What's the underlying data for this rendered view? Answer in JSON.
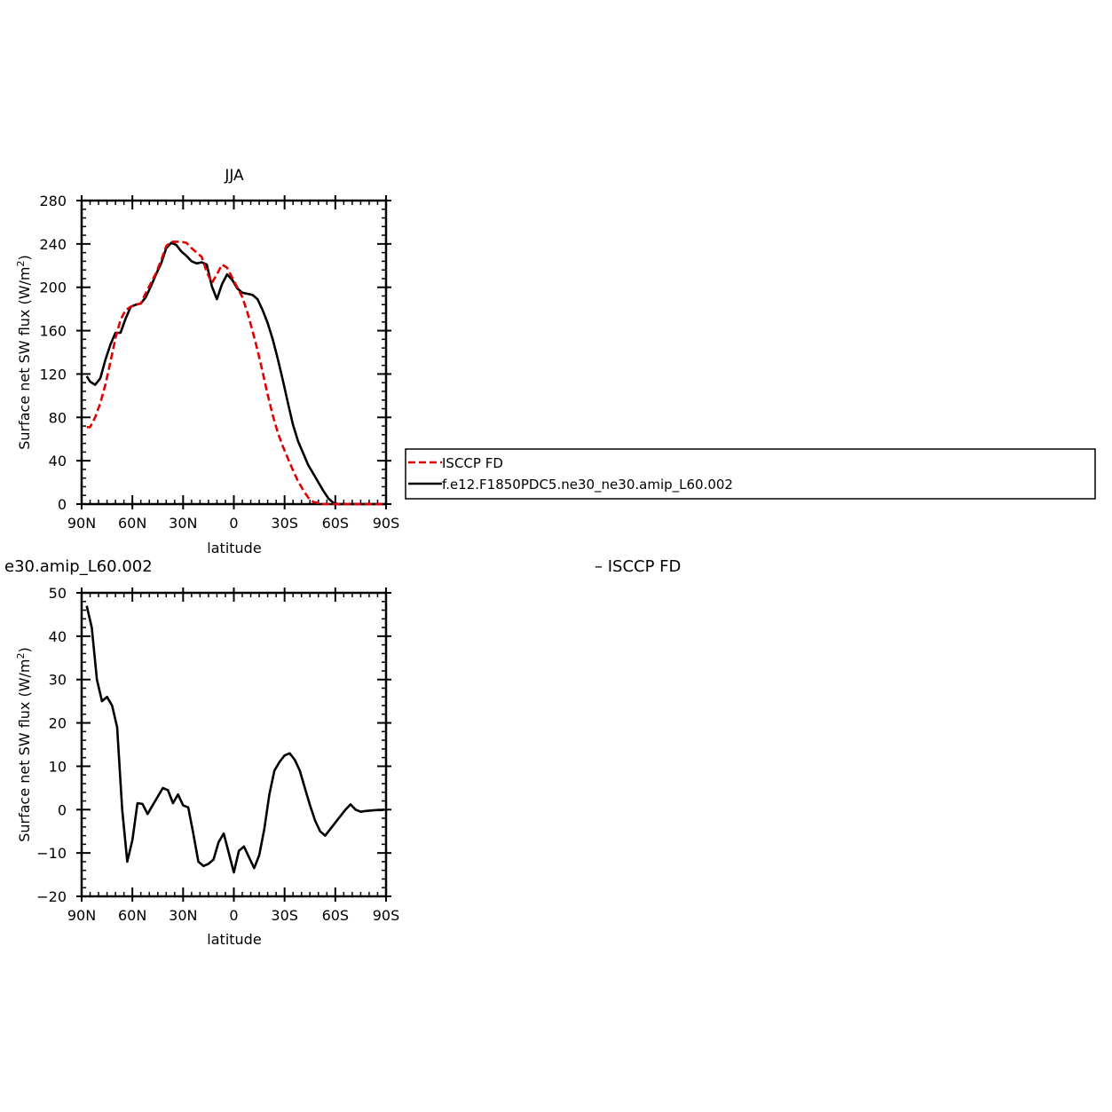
{
  "chart_data": [
    {
      "type": "line",
      "title": "JJA",
      "xlabel": "latitude",
      "ylabel": "Surface net SW flux (W/m",
      "ylabel_sup": "2",
      "ylabel_end": ")",
      "xlim": [
        90,
        -90
      ],
      "ylim": [
        0,
        280
      ],
      "xticks": [
        90,
        60,
        30,
        0,
        -30,
        -60,
        -90
      ],
      "xtick_labels": [
        "90N",
        "60N",
        "30N",
        "0",
        "30S",
        "60S",
        "90S"
      ],
      "yticks": [
        0,
        40,
        80,
        120,
        160,
        200,
        240,
        280
      ],
      "ytick_labels": [
        "0",
        "40",
        "80",
        "120",
        "160",
        "200",
        "240",
        "280"
      ],
      "legend_position": "right",
      "series": [
        {
          "name": "ISCCP FD",
          "color": "#e00000",
          "dash": "dashed",
          "x": [
            87,
            85,
            82,
            79,
            76,
            73,
            70,
            67,
            64,
            61,
            58,
            55,
            52,
            49,
            46,
            43,
            40,
            37,
            34,
            31,
            28,
            25,
            22,
            19,
            16,
            13,
            10,
            7,
            4,
            1,
            -2,
            -5,
            -8,
            -11,
            -14,
            -17,
            -20,
            -23,
            -26,
            -29,
            -32,
            -35,
            -38,
            -41,
            -44,
            -47,
            -50,
            -53,
            -56,
            -59,
            -62,
            -65,
            -68,
            -71,
            -74,
            -77,
            -80,
            -83,
            -86,
            -89
          ],
          "y": [
            71,
            71,
            80,
            93,
            110,
            131,
            153,
            170,
            179,
            182,
            184,
            185,
            195,
            204,
            213,
            225,
            238,
            242,
            242,
            242,
            241,
            236,
            232,
            228,
            214,
            204,
            212,
            221,
            218,
            209,
            200,
            191,
            177,
            160,
            142,
            122,
            101,
            82,
            66,
            53,
            42,
            31,
            21,
            13,
            6,
            2,
            1,
            0,
            0,
            0,
            0,
            0,
            0,
            0,
            0,
            0,
            0,
            0,
            0,
            0
          ]
        },
        {
          "name": "f.e12.F1850PDC5.ne30_ne30.amip_L60.002",
          "color": "#000000",
          "dash": "solid",
          "x": [
            87,
            85,
            82,
            79,
            76,
            73,
            70,
            67,
            64,
            61,
            58,
            55,
            52,
            49,
            46,
            43,
            40,
            37,
            34,
            31,
            28,
            25,
            22,
            19,
            16,
            13,
            10,
            7,
            4,
            1,
            -2,
            -5,
            -8,
            -11,
            -14,
            -17,
            -20,
            -23,
            -26,
            -29,
            -32,
            -35,
            -38,
            -41,
            -44,
            -47,
            -50,
            -53,
            -56,
            -59,
            -62,
            -65,
            -68,
            -71,
            -74,
            -77,
            -80,
            -83,
            -86,
            -89
          ],
          "y": [
            118,
            113,
            110,
            116,
            133,
            147,
            158,
            158,
            171,
            182,
            184,
            185,
            191,
            201,
            212,
            222,
            236,
            241,
            239,
            233,
            229,
            224,
            222,
            223,
            221,
            201,
            189,
            203,
            212,
            207,
            199,
            195,
            194,
            193,
            189,
            179,
            167,
            152,
            134,
            114,
            93,
            73,
            58,
            47,
            36,
            28,
            20,
            12,
            5,
            1,
            0,
            0,
            0,
            0,
            0,
            0,
            0,
            0,
            0,
            0
          ]
        }
      ]
    },
    {
      "type": "line",
      "title": "e30.amip_L60.002",
      "title_right": "– ISCCP FD",
      "xlabel": "latitude",
      "ylabel": "Surface net SW flux (W/m",
      "ylabel_sup": "2",
      "ylabel_end": ")",
      "xlim": [
        90,
        -90
      ],
      "ylim": [
        -20,
        50
      ],
      "xticks": [
        90,
        60,
        30,
        0,
        -30,
        -60,
        -90
      ],
      "xtick_labels": [
        "90N",
        "60N",
        "30N",
        "0",
        "30S",
        "60S",
        "90S"
      ],
      "yticks": [
        -20,
        -10,
        0,
        10,
        20,
        30,
        40,
        50
      ],
      "ytick_labels": [
        "−20",
        "−10",
        "0",
        "10",
        "20",
        "30",
        "40",
        "50"
      ],
      "series": [
        {
          "color": "#000000",
          "dash": "solid",
          "x": [
            87,
            84,
            81,
            78,
            75,
            72,
            69,
            66,
            63,
            60,
            57,
            54,
            51,
            48,
            45,
            42,
            39,
            36,
            33,
            30,
            27,
            24,
            21,
            18,
            15,
            12,
            9,
            6,
            3,
            0,
            -3,
            -6,
            -9,
            -12,
            -15,
            -18,
            -21,
            -24,
            -27,
            -30,
            -33,
            -36,
            -39,
            -42,
            -45,
            -48,
            -51,
            -54,
            -57,
            -60,
            -63,
            -66,
            -69,
            -72,
            -75,
            -78,
            -81,
            -84,
            -87,
            -89
          ],
          "y": [
            47,
            42,
            30,
            25,
            26,
            24,
            19,
            0,
            -12,
            -7,
            1.5,
            1.3,
            -1,
            1,
            3,
            5,
            4.5,
            1.5,
            3.5,
            1,
            0.5,
            -5.5,
            -12,
            -13,
            -12.5,
            -11.5,
            -7.5,
            -5.5,
            -10,
            -14.5,
            -9.5,
            -8.5,
            -11,
            -13.5,
            -10.5,
            -4.5,
            3.5,
            9,
            11,
            12.5,
            13,
            11.5,
            9,
            5,
            1,
            -2.5,
            -5,
            -6,
            -4.5,
            -3,
            -1.5,
            0,
            1.2,
            0,
            -0.5,
            -0.3,
            -0.2,
            -0.1,
            -0.1,
            0
          ]
        }
      ]
    }
  ]
}
